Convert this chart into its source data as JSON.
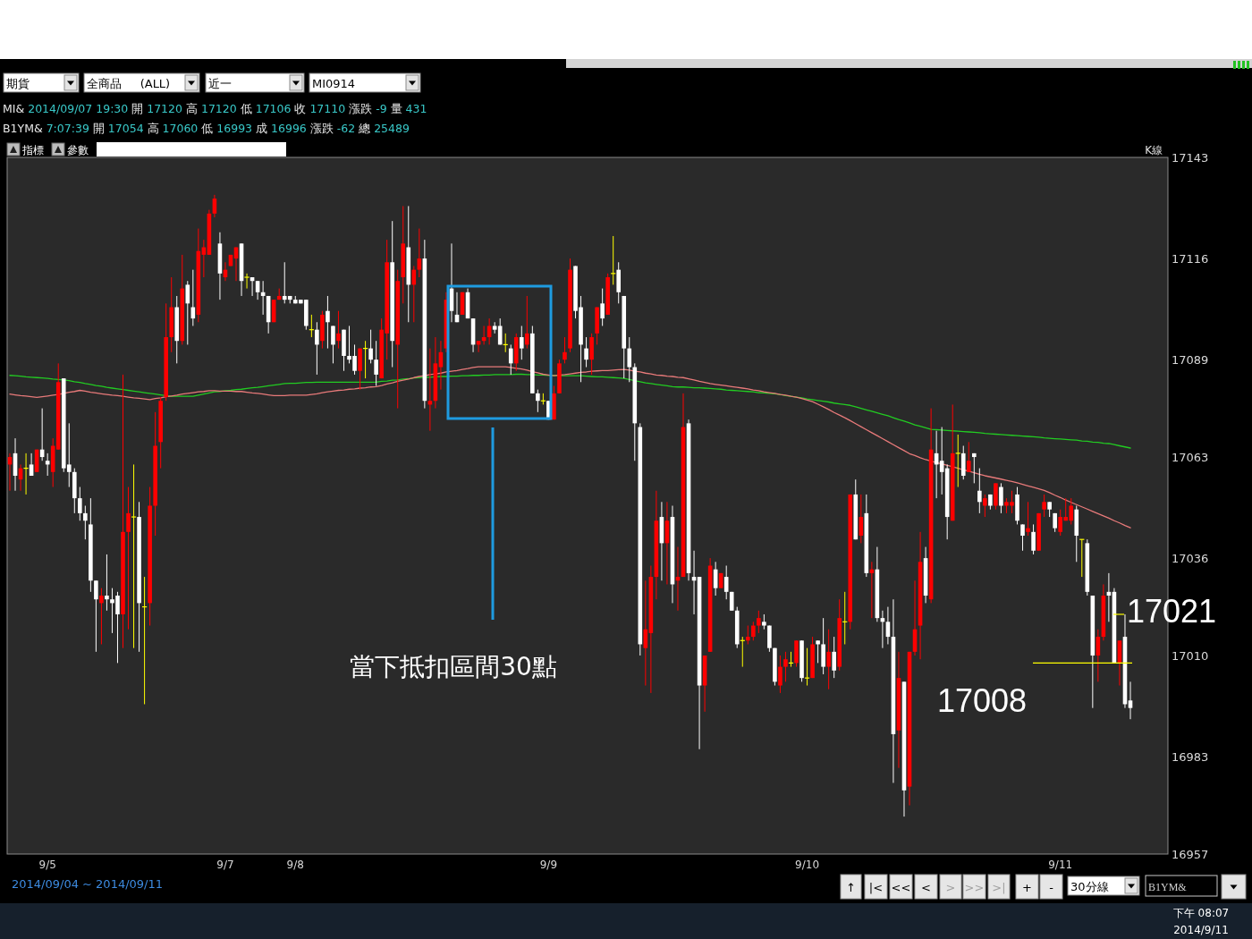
{
  "chart_data": {
    "type": "candlestick",
    "categories": [
      null,
      null,
      null,
      null,
      null,
      null,
      null,
      "9/5",
      null,
      null,
      null,
      null,
      null,
      null,
      null,
      null,
      null,
      null,
      null,
      null,
      null,
      null,
      null,
      null,
      null,
      null,
      null,
      null,
      null,
      null,
      null,
      null,
      null,
      null,
      null,
      null,
      null,
      null,
      null,
      null,
      "9/7",
      null,
      null,
      null,
      null,
      null,
      null,
      null,
      null,
      null,
      null,
      null,
      null,
      "9/8",
      null,
      null,
      null,
      null,
      null,
      null,
      null,
      null,
      null,
      null,
      null,
      null,
      null,
      null,
      null,
      null,
      null,
      null,
      null,
      null,
      null,
      null,
      null,
      null,
      null,
      null,
      null,
      null,
      null,
      null,
      null,
      null,
      null,
      null,
      null,
      null,
      null,
      null,
      null,
      null,
      null,
      null,
      null,
      null,
      null,
      null,
      "9/9",
      null,
      null,
      null,
      null,
      null,
      null,
      null,
      null,
      null,
      null,
      null,
      null,
      null,
      null,
      null,
      null,
      null,
      null,
      null,
      null,
      null,
      null,
      null,
      null,
      null,
      null,
      null,
      null,
      null,
      null,
      null,
      null,
      null,
      null,
      null,
      null,
      null,
      null,
      null,
      null,
      null,
      null,
      null,
      null,
      null,
      null,
      null,
      "9/10",
      null,
      null,
      null,
      null,
      null,
      null,
      null,
      null,
      null,
      null,
      null,
      null,
      null,
      null,
      null,
      null,
      null,
      null,
      null,
      null,
      null,
      null,
      null,
      null,
      null,
      null,
      null,
      null,
      null,
      null,
      null,
      null,
      null,
      null,
      null,
      null,
      null,
      null,
      null,
      null,
      null,
      null,
      null,
      null,
      null,
      null,
      "9/11",
      null,
      null,
      null,
      null,
      null,
      null,
      null,
      null,
      null,
      null,
      null,
      null,
      null
    ],
    "ohlc": [
      [
        17061,
        17064,
        17054,
        17063
      ],
      [
        17064,
        17068,
        17054,
        17058
      ],
      [
        17057,
        17061,
        17054,
        17060
      ],
      [
        17060,
        17064,
        17053,
        17060
      ],
      [
        17061,
        17064,
        17058,
        17058
      ],
      [
        17059,
        17065,
        17059,
        17065
      ],
      [
        17065,
        17076,
        17062,
        17063
      ],
      [
        17062,
        17064,
        17058,
        17061
      ],
      [
        17059,
        17068,
        17055,
        17066
      ],
      [
        17065,
        17088,
        17065,
        17083
      ],
      [
        17084,
        17084,
        17059,
        17060
      ],
      [
        17061,
        17072,
        17055,
        17059
      ],
      [
        17059,
        17060,
        17048,
        17052
      ],
      [
        17052,
        17055,
        17046,
        17048
      ],
      [
        17048,
        17050,
        17041,
        17046
      ],
      [
        17045,
        17052,
        17027,
        17030
      ],
      [
        17030,
        17030,
        17011,
        17025
      ],
      [
        17024,
        17028,
        17013,
        17026
      ],
      [
        17026,
        17037,
        17022,
        17025
      ],
      [
        17025,
        17028,
        17016,
        17024
      ],
      [
        17026,
        17027,
        17008,
        17021
      ],
      [
        17021,
        17085,
        17012,
        17043
      ],
      [
        17043,
        17055,
        17017,
        17048
      ],
      [
        17047,
        17061,
        17012,
        17047
      ],
      [
        17047,
        17051,
        17011,
        17024
      ],
      [
        17023,
        17031,
        16997,
        17023
      ],
      [
        17024,
        17055,
        17018,
        17050
      ],
      [
        17050,
        17075,
        17042,
        17066
      ],
      [
        17067,
        17079,
        17060,
        17078
      ],
      [
        17079,
        17104,
        17078,
        17095
      ],
      [
        17095,
        17111,
        17091,
        17103
      ],
      [
        17103,
        17106,
        17088,
        17094
      ],
      [
        17094,
        17117,
        17093,
        17108
      ],
      [
        17109,
        17110,
        17093,
        17104
      ],
      [
        17103,
        17113,
        17098,
        17100
      ],
      [
        17101,
        17124,
        17099,
        17118
      ],
      [
        17117,
        17121,
        17111,
        17119
      ],
      [
        17117,
        17129,
        17117,
        17128
      ],
      [
        17128,
        17133,
        17127,
        17132
      ],
      [
        17120,
        17123,
        17105,
        17112
      ],
      [
        17111,
        17115,
        17110,
        17113
      ],
      [
        17114,
        17117,
        17114,
        17117
      ],
      [
        17116,
        17119,
        17110,
        17119
      ],
      [
        17120,
        17120,
        17106,
        17110
      ],
      [
        17111,
        17112,
        17108,
        17111
      ],
      [
        17111,
        17111,
        17106,
        17110
      ],
      [
        17110,
        17110,
        17105,
        17107
      ],
      [
        17107,
        17110,
        17101,
        17106
      ],
      [
        17106,
        17106,
        17096,
        17099
      ],
      [
        17099,
        17105,
        17099,
        17105
      ],
      [
        17105,
        17108,
        17105,
        17106
      ],
      [
        17106,
        17115,
        17104,
        17105
      ],
      [
        17106,
        17106,
        17104,
        17105
      ],
      [
        17105,
        17106,
        17104,
        17104
      ],
      [
        17105,
        17105,
        17104,
        17104
      ],
      [
        17105,
        17105,
        17097,
        17098
      ],
      [
        17097,
        17101,
        17095,
        17097
      ],
      [
        17097,
        17099,
        17085,
        17093
      ],
      [
        17094,
        17102,
        17092,
        17101
      ],
      [
        17102,
        17106,
        17092,
        17099
      ],
      [
        17098,
        17098,
        17088,
        17093
      ],
      [
        17094,
        17102,
        17092,
        17096
      ],
      [
        17097,
        17097,
        17086,
        17090
      ],
      [
        17090,
        17098,
        17088,
        17089
      ],
      [
        17090,
        17093,
        17085,
        17086
      ],
      [
        17086,
        17092,
        17081,
        17092
      ],
      [
        17092,
        17094,
        17084,
        17092
      ],
      [
        17092,
        17097,
        17088,
        17089
      ],
      [
        17089,
        17094,
        17082,
        17085
      ],
      [
        17084,
        17100,
        17084,
        17097
      ],
      [
        17096,
        17121,
        17089,
        17115
      ],
      [
        17115,
        17126,
        17087,
        17094
      ],
      [
        17093,
        17113,
        17076,
        17110
      ],
      [
        17111,
        17130,
        17104,
        17120
      ],
      [
        17119,
        17130,
        17099,
        17109
      ],
      [
        17109,
        17114,
        17099,
        17113
      ],
      [
        17113,
        17124,
        17111,
        17116
      ],
      [
        17116,
        17121,
        17076,
        17078
      ],
      [
        17077,
        17092,
        17070,
        17078
      ],
      [
        17078,
        17095,
        17076,
        17088
      ],
      [
        17087,
        17094,
        17081,
        17091
      ],
      [
        17092,
        17107,
        17091,
        17105
      ],
      [
        17108,
        17120,
        17099,
        17102
      ],
      [
        17101,
        17107,
        17099,
        17099
      ],
      [
        17101,
        17107,
        17101,
        17107
      ],
      [
        17107,
        17108,
        17100,
        17100
      ],
      [
        17100,
        17100,
        17091,
        17093
      ],
      [
        17093,
        17094,
        17091,
        17094
      ],
      [
        17094,
        17098,
        17093,
        17095
      ],
      [
        17095,
        17100,
        17093,
        17098
      ],
      [
        17098,
        17099,
        17096,
        17097
      ],
      [
        17098,
        17100,
        17093,
        17093
      ],
      [
        17093,
        17096,
        17091,
        17093
      ],
      [
        17092,
        17093,
        17085,
        17088
      ],
      [
        17088,
        17096,
        17086,
        17095
      ],
      [
        17095,
        17098,
        17089,
        17092
      ],
      [
        17093,
        17106,
        17092,
        17096
      ],
      [
        17096,
        17098,
        17080,
        17080
      ],
      [
        17080,
        17081,
        17075,
        17078
      ],
      [
        17078,
        17080,
        17077,
        17078
      ],
      [
        17078,
        17078,
        17073,
        17073
      ],
      [
        17073,
        17082,
        17073,
        17080
      ],
      [
        17080,
        17089,
        17080,
        17088
      ],
      [
        17089,
        17095,
        17088,
        17091
      ],
      [
        17092,
        17116,
        17091,
        17113
      ],
      [
        17114,
        17114,
        17100,
        17102
      ],
      [
        17103,
        17106,
        17083,
        17093
      ],
      [
        17092,
        17095,
        17087,
        17089
      ],
      [
        17089,
        17096,
        17085,
        17095
      ],
      [
        17096,
        17103,
        17093,
        17103
      ],
      [
        17104,
        17108,
        17098,
        17100
      ],
      [
        17101,
        17112,
        17101,
        17111
      ],
      [
        17112,
        17122,
        17109,
        17112
      ],
      [
        17113,
        17115,
        17104,
        17107
      ],
      [
        17106,
        17106,
        17084,
        17092
      ],
      [
        17092,
        17095,
        17083,
        17087
      ],
      [
        17087,
        17088,
        17062,
        17072
      ],
      [
        17071,
        17072,
        17010,
        17013
      ],
      [
        17012,
        17030,
        17002,
        17017
      ],
      [
        17016,
        17034,
        17000,
        17031
      ],
      [
        17031,
        17054,
        17025,
        17046
      ],
      [
        17047,
        17051,
        17030,
        17040
      ],
      [
        17040,
        17051,
        17029,
        17046
      ],
      [
        17047,
        17050,
        17024,
        17029
      ],
      [
        17030,
        17039,
        17022,
        17031
      ],
      [
        17031,
        17080,
        17031,
        17071
      ],
      [
        17072,
        17073,
        17030,
        17032
      ],
      [
        17031,
        17038,
        17021,
        17030
      ],
      [
        17031,
        17031,
        16985,
        17002
      ],
      [
        17002,
        17010,
        16995,
        17010
      ],
      [
        17011,
        17036,
        17011,
        17034
      ],
      [
        17033,
        17035,
        17026,
        17028
      ],
      [
        17028,
        17032,
        17028,
        17032
      ],
      [
        17031,
        17034,
        17025,
        17027
      ],
      [
        17027,
        17027,
        17022,
        17022
      ],
      [
        17022,
        17023,
        17012,
        17013
      ],
      [
        17014,
        17015,
        17007,
        17014
      ],
      [
        17014,
        17018,
        17013,
        17015
      ],
      [
        17015,
        17019,
        17014,
        17018
      ],
      [
        17018,
        17022,
        17016,
        17020
      ],
      [
        17019,
        17021,
        17017,
        17018
      ],
      [
        17018,
        17018,
        17011,
        17012
      ],
      [
        17012,
        17012,
        17002,
        17003
      ],
      [
        17002,
        17010,
        17000,
        17007
      ],
      [
        17007,
        17011,
        17003,
        17009
      ],
      [
        17008,
        17011,
        17007,
        17008
      ],
      [
        17008,
        17014,
        17007,
        17014
      ],
      [
        17014,
        17014,
        17003,
        17004
      ],
      [
        17004,
        17012,
        17002,
        17004
      ],
      [
        17004,
        17015,
        17004,
        17013
      ],
      [
        17014,
        17014,
        17008,
        17013
      ],
      [
        17013,
        17020,
        17005,
        17007
      ],
      [
        17007,
        17017,
        17001,
        17011
      ],
      [
        17011,
        17015,
        17004,
        17006
      ],
      [
        17007,
        17025,
        17006,
        17020
      ],
      [
        17019,
        17027,
        17013,
        17019
      ],
      [
        17019,
        17053,
        17017,
        17053
      ],
      [
        17053,
        17057,
        17041,
        17041
      ],
      [
        17042,
        17053,
        17040,
        17047
      ],
      [
        17048,
        17053,
        17031,
        17032
      ],
      [
        17032,
        17035,
        17020,
        17033
      ],
      [
        17033,
        17039,
        17019,
        17020
      ],
      [
        17020,
        17022,
        17012,
        17019
      ],
      [
        17019,
        17023,
        17013,
        17015
      ],
      [
        17015,
        17025,
        16976,
        16989
      ],
      [
        16990,
        17011,
        16980,
        17004
      ],
      [
        17003,
        17003,
        16967,
        16974
      ],
      [
        16975,
        17011,
        16970,
        17011
      ],
      [
        17011,
        17030,
        17010,
        17017
      ],
      [
        17018,
        17043,
        17009,
        17035
      ],
      [
        17036,
        17039,
        17024,
        17026
      ],
      [
        17025,
        17076,
        17024,
        17065
      ],
      [
        17064,
        17070,
        17052,
        17061
      ],
      [
        17062,
        17071,
        17053,
        17059
      ],
      [
        17060,
        17061,
        17041,
        17047
      ],
      [
        17046,
        17077,
        17046,
        17064
      ],
      [
        17064,
        17069,
        17055,
        17064
      ],
      [
        17064,
        17066,
        17057,
        17058
      ],
      [
        17059,
        17067,
        17059,
        17062
      ],
      [
        17064,
        17064,
        17056,
        17063
      ],
      [
        17054,
        17060,
        17048,
        17051
      ],
      [
        17050,
        17053,
        17047,
        17052
      ],
      [
        17053,
        17053,
        17049,
        17050
      ],
      [
        17050,
        17056,
        17049,
        17056
      ],
      [
        17055,
        17056,
        17048,
        17050
      ],
      [
        17050,
        17052,
        17048,
        17051
      ],
      [
        17050,
        17054,
        17048,
        17051
      ],
      [
        17053,
        17055,
        17045,
        17046
      ],
      [
        17045,
        17045,
        17038,
        17042
      ],
      [
        17043,
        17051,
        17042,
        17044
      ],
      [
        17043,
        17045,
        17037,
        17038
      ],
      [
        17038,
        17048,
        17038,
        17048
      ],
      [
        17049,
        17053,
        17047,
        17051
      ],
      [
        17051,
        17051,
        17047,
        17049
      ],
      [
        17048,
        17048,
        17043,
        17044
      ],
      [
        17043,
        17049,
        17042,
        17047
      ],
      [
        17046,
        17052,
        17046,
        17047
      ],
      [
        17046,
        17052,
        17045,
        17050
      ],
      [
        17049,
        17050,
        17035,
        17042
      ],
      [
        17041,
        17041,
        17031,
        17041
      ],
      [
        17040,
        17041,
        17026,
        17027
      ],
      [
        17026,
        17026,
        16996,
        17010
      ],
      [
        17010,
        17017,
        17003,
        17015
      ],
      [
        17015,
        17029,
        17014,
        17026
      ],
      [
        17027,
        17032,
        17019,
        17026
      ],
      [
        17027,
        17028,
        17008,
        17008
      ],
      [
        17008,
        17014,
        17002,
        17014
      ],
      [
        17015,
        17021,
        16996,
        16997
      ],
      [
        16998,
        17003,
        16993,
        16996
      ]
    ],
    "colors": [
      "#ff0000",
      "#ffffff",
      "#ff0000",
      "#ffff00",
      "#ffffff",
      "#ff0000",
      "#ffffff",
      "#ffffff",
      "#ff0000",
      "#ff0000",
      "#ffffff",
      "#ffffff",
      "#ffffff",
      "#ffffff",
      "#ffffff",
      "#ffffff",
      "#ffffff",
      "#ff0000",
      "#ffffff",
      "#ffffff",
      "#ffffff",
      "#ff0000",
      "#ff0000",
      "#ffff00",
      "#ffffff",
      "#ffff00",
      "#ff0000",
      "#ff0000",
      "#ff0000",
      "#ff0000",
      "#ff0000",
      "#ffffff",
      "#ff0000",
      "#ffffff",
      "#ffffff",
      "#ff0000",
      "#ff0000",
      "#ff0000",
      "#ff0000",
      "#ffffff",
      "#ff0000",
      "#ff0000",
      "#ff0000",
      "#ffffff",
      "#ffff00",
      "#ffffff",
      "#ffffff",
      "#ffffff",
      "#ffffff",
      "#ff0000",
      "#ff0000",
      "#ffffff",
      "#ffffff",
      "#ffffff",
      "#ffffff",
      "#ffffff",
      "#ffff00",
      "#ffffff",
      "#ff0000",
      "#ffffff",
      "#ffffff",
      "#ff0000",
      "#ffffff",
      "#ffffff",
      "#ffffff",
      "#ff0000",
      "#ffff00",
      "#ffffff",
      "#ffffff",
      "#ff0000",
      "#ff0000",
      "#ffffff",
      "#ff0000",
      "#ff0000",
      "#ffffff",
      "#ff0000",
      "#ff0000",
      "#ffffff",
      "#ff0000",
      "#ff0000",
      "#ff0000",
      "#ff0000",
      "#ffffff",
      "#ffffff",
      "#ff0000",
      "#ffffff",
      "#ffffff",
      "#ff0000",
      "#ff0000",
      "#ff0000",
      "#ffffff",
      "#ffffff",
      "#ffff00",
      "#ffffff",
      "#ff0000",
      "#ffffff",
      "#ff0000",
      "#ffffff",
      "#ffffff",
      "#ffff00",
      "#ffffff",
      "#ff0000",
      "#ff0000",
      "#ff0000",
      "#ff0000",
      "#ffffff",
      "#ffffff",
      "#ffffff",
      "#ff0000",
      "#ff0000",
      "#ffffff",
      "#ff0000",
      "#ffff00",
      "#ffffff",
      "#ffffff",
      "#ffffff",
      "#ffffff",
      "#ffffff",
      "#ff0000",
      "#ff0000",
      "#ff0000",
      "#ffffff",
      "#ff0000",
      "#ffffff",
      "#ff0000",
      "#ff0000",
      "#ffffff",
      "#ffffff",
      "#ffffff",
      "#ff0000",
      "#ff0000",
      "#ffffff",
      "#ff0000",
      "#ffffff",
      "#ffffff",
      "#ffffff",
      "#ffff00",
      "#ff0000",
      "#ff0000",
      "#ff0000",
      "#ffffff",
      "#ffffff",
      "#ffffff",
      "#ff0000",
      "#ff0000",
      "#ffff00",
      "#ff0000",
      "#ffffff",
      "#ffff00",
      "#ff0000",
      "#ffffff",
      "#ffffff",
      "#ff0000",
      "#ffffff",
      "#ff0000",
      "#ffff00",
      "#ff0000",
      "#ffffff",
      "#ff0000",
      "#ffffff",
      "#ff0000",
      "#ffffff",
      "#ffffff",
      "#ffffff",
      "#ffffff",
      "#ff0000",
      "#ffffff",
      "#ff0000",
      "#ff0000",
      "#ff0000",
      "#ffffff",
      "#ff0000",
      "#ffffff",
      "#ffffff",
      "#ffffff",
      "#ff0000",
      "#ffff00",
      "#ffffff",
      "#ff0000",
      "#ffffff",
      "#ffffff",
      "#ff0000",
      "#ffffff",
      "#ff0000",
      "#ffffff",
      "#ff0000",
      "#ff0000",
      "#ffffff",
      "#ffffff",
      "#ff0000",
      "#ffffff",
      "#ff0000",
      "#ff0000",
      "#ffffff",
      "#ffffff",
      "#ff0000",
      "#ff0000",
      "#ff0000",
      "#ffffff",
      "#ffff00",
      "#ffffff",
      "#ffffff",
      "#ff0000",
      "#ff0000",
      "#ffffff",
      "#ffffff",
      "#ff0000",
      "#ffffff",
      "#ffffff"
    ],
    "series": [
      {
        "type": "line",
        "color": "#22cc22",
        "values": [
          17084.8,
          17084.7,
          17084.6,
          17084.4,
          17084.3,
          17084.2,
          17084.1,
          17084.0,
          17083.8,
          17083.7,
          17083.6,
          17083.4,
          17083.1,
          17082.9,
          17082.6,
          17082.4,
          17082.1,
          17081.9,
          17081.6,
          17081.4,
          17081.2,
          17081.0,
          17080.8,
          17080.6,
          17080.4,
          17080.2,
          17080.0,
          17079.8,
          17079.6,
          17079.4,
          17079.2,
          17079.2,
          17079.2,
          17079.2,
          17079.2,
          17079.5,
          17079.8,
          17080.1,
          17080.4,
          17080.5,
          17080.7,
          17080.8,
          17081.0,
          17081.1,
          17081.3,
          17081.5,
          17081.6,
          17081.8,
          17082.0,
          17082.2,
          17082.4,
          17082.6,
          17082.7,
          17082.7,
          17082.8,
          17082.9,
          17082.9,
          17083.0,
          17083.0,
          17083.0,
          17083.0,
          17083.0,
          17083.0,
          17083.0,
          17083.0,
          17083.0,
          17083.0,
          17083.0,
          17083.0,
          17083.2,
          17083.3,
          17083.5,
          17083.6,
          17083.8,
          17083.9,
          17084.1,
          17084.2,
          17084.3,
          17084.3,
          17084.4,
          17084.5,
          17084.5,
          17084.6,
          17084.6,
          17084.7,
          17084.7,
          17084.8,
          17084.8,
          17084.9,
          17084.9,
          17085.0,
          17085.0,
          17085.0,
          17085.0,
          17085.1,
          17085.1,
          17085.0,
          17085.0,
          17084.9,
          17084.9,
          17084.8,
          17084.8,
          17084.7,
          17084.7,
          17084.7,
          17084.7,
          17084.7,
          17084.6,
          17084.5,
          17084.4,
          17084.4,
          17084.3,
          17084.2,
          17084.1,
          17084.0,
          17083.7,
          17083.4,
          17083.1,
          17082.8,
          17082.6,
          17082.4,
          17082.2,
          17082.0,
          17081.8,
          17081.7,
          17081.7,
          17081.6,
          17081.5,
          17081.5,
          17081.4,
          17081.3,
          17081.2,
          17081.1,
          17080.9,
          17080.8,
          17080.7,
          17080.6,
          17080.5,
          17080.4,
          17080.2,
          17080.1,
          17080.0,
          17079.9,
          17079.7,
          17079.4,
          17079.2,
          17079.0,
          17078.8,
          17078.5,
          17078.3,
          17078.1,
          17077.9,
          17077.7,
          17077.4,
          17077.2,
          17077.0,
          17076.8,
          17076.4,
          17076.0,
          17075.6,
          17075.2,
          17074.8,
          17074.4,
          17074.0,
          17073.5,
          17073.0,
          17072.6,
          17072.1,
          17071.6,
          17071.2,
          17070.8,
          17070.4,
          17070.3,
          17070.2,
          17070.1,
          17070.0,
          17069.9,
          17069.8,
          17069.7,
          17069.6,
          17069.5,
          17069.3,
          17069.2,
          17069.1,
          17069.0,
          17068.9,
          17068.8,
          17068.7,
          17068.6,
          17068.5,
          17068.4,
          17068.3,
          17068.1,
          17068.0,
          17067.9,
          17067.8,
          17067.7,
          17067.6,
          17067.5,
          17067.3,
          17067.2,
          17067.0,
          17066.9,
          17066.7,
          17066.6,
          17066.3,
          17066.0,
          17065.7,
          17065.4
        ]
      },
      {
        "type": "line",
        "color": "#e87a7a",
        "values": [
          17079.8,
          17079.6,
          17079.4,
          17079.3,
          17079.1,
          17078.9,
          17079.1,
          17079.3,
          17079.5,
          17079.7,
          17080.0,
          17080.3,
          17080.5,
          17080.8,
          17080.6,
          17080.3,
          17080.1,
          17079.9,
          17079.7,
          17079.5,
          17079.4,
          17079.2,
          17079.0,
          17078.8,
          17078.7,
          17078.5,
          17078.3,
          17078.6,
          17078.8,
          17079.1,
          17079.3,
          17079.5,
          17079.8,
          17080.0,
          17080.2,
          17080.4,
          17080.5,
          17080.7,
          17080.7,
          17080.6,
          17080.6,
          17080.6,
          17080.5,
          17080.5,
          17080.3,
          17080.1,
          17080.0,
          17079.8,
          17079.6,
          17079.4,
          17079.4,
          17079.4,
          17079.5,
          17079.5,
          17079.5,
          17079.5,
          17079.7,
          17079.9,
          17080.2,
          17080.4,
          17080.6,
          17080.8,
          17080.9,
          17081.1,
          17081.2,
          17081.4,
          17081.5,
          17081.7,
          17081.8,
          17082.1,
          17082.5,
          17082.8,
          17083.2,
          17083.5,
          17083.8,
          17084.2,
          17084.5,
          17084.7,
          17085.0,
          17085.2,
          17085.4,
          17085.7,
          17085.9,
          17086.1,
          17086.4,
          17086.6,
          17086.9,
          17087.1,
          17087.1,
          17087.1,
          17087.1,
          17087.1,
          17087.1,
          17086.9,
          17086.7,
          17086.5,
          17086.2,
          17085.8,
          17085.5,
          17085.1,
          17084.9,
          17084.7,
          17084.9,
          17085.0,
          17085.2,
          17085.4,
          17085.6,
          17085.7,
          17085.9,
          17086.0,
          17086.1,
          17086.1,
          17086.2,
          17086.3,
          17086.4,
          17086.2,
          17085.9,
          17085.7,
          17085.4,
          17085.2,
          17084.9,
          17084.8,
          17084.6,
          17084.5,
          17084.3,
          17084.2,
          17083.9,
          17083.6,
          17083.2,
          17082.9,
          17082.6,
          17082.4,
          17082.2,
          17082.0,
          17081.8,
          17081.6,
          17081.4,
          17081.2,
          17080.9,
          17080.7,
          17080.4,
          17080.2,
          17080.0,
          17079.7,
          17079.5,
          17079.2,
          17079.0,
          17078.6,
          17078.2,
          17077.8,
          17077.1,
          17076.4,
          17075.7,
          17074.9,
          17074.2,
          17073.5,
          17072.7,
          17071.9,
          17071.1,
          17070.3,
          17069.5,
          17068.7,
          17067.9,
          17067.1,
          17066.3,
          17065.5,
          17064.7,
          17063.9,
          17063.4,
          17062.8,
          17062.3,
          17061.9,
          17061.5,
          17061.2,
          17060.8,
          17060.4,
          17060.0,
          17059.6,
          17059.2,
          17058.8,
          17058.4,
          17058.0,
          17057.7,
          17057.4,
          17057.1,
          17056.8,
          17056.5,
          17056.1,
          17055.7,
          17055.3,
          17054.9,
          17054.5,
          17054.1,
          17053.5,
          17052.8,
          17052.2,
          17051.5,
          17050.9,
          17050.3,
          17049.7,
          17049.1,
          17048.5,
          17047.9,
          17047.3,
          17046.7,
          17046.0,
          17045.4,
          17044.7,
          17044.1
        ]
      }
    ],
    "ylim": [
      16957,
      17143
    ],
    "yticks": [
      16957,
      16983,
      17010,
      17036,
      17063,
      17089,
      17116,
      17143
    ],
    "ref_lines": [
      {
        "axis": "y",
        "value": 17008,
        "label": "17008",
        "color": "#ffff00"
      },
      {
        "axis": "y",
        "value": 17021,
        "label": "17021",
        "color": "#ffff00"
      }
    ],
    "annotations": [
      "期貨",
      "全商品     (ALL)",
      "近一",
      "MI0914",
      "MI& 2014/09/07 19:30 開 17120 高 17120 低 17106 收 17110 漲跌 -9 量 431",
      "B1YM& 7:07:39 開 17054 高 17060 低 16993 成 16996 漲跌 -62 總 25489",
      "指標",
      "參數",
      "K線",
      "當下抵扣區間30點",
      "2014/09/04 ~ 2014/09/11",
      "↑",
      "|<",
      "<<",
      "<",
      ">",
      ">>",
      ">|",
      "+",
      "-",
      "30分線",
      "B1YM&",
      "下午 08:07",
      "2014/9/11"
    ]
  }
}
